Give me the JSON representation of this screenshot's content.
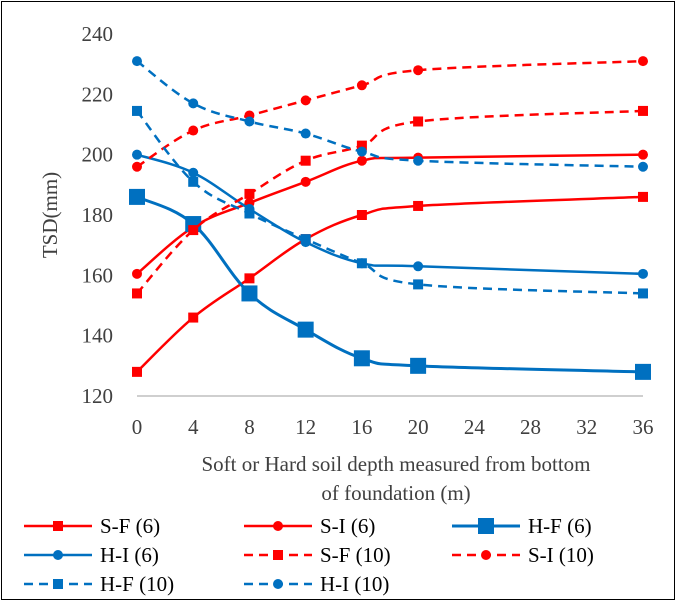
{
  "chart_data": {
    "type": "line",
    "title": "",
    "xlabel": "Soft or Hard soil depth  measured from bottom of foundation (m)",
    "xlabel_lines": [
      "Soft or Hard soil depth  measured from bottom",
      "of foundation (m)"
    ],
    "ylabel": "TSD(mm)",
    "x_categories": [
      "0",
      "4",
      "8",
      "12",
      "16",
      "20",
      "24",
      "28",
      "32",
      "36"
    ],
    "x_points": [
      "0",
      "4",
      "8",
      "12",
      "16",
      "20",
      "36"
    ],
    "ylim": [
      120,
      240
    ],
    "yticks": [
      "120",
      "140",
      "160",
      "180",
      "200",
      "220",
      "240"
    ],
    "grid": false,
    "legend_position": "bottom",
    "series": [
      {
        "name": "S-F (6)",
        "color": "#ff0000",
        "dash": "solid",
        "marker": "square",
        "marker_size": "small",
        "values": [
          128,
          146,
          159,
          172,
          180,
          183,
          186
        ]
      },
      {
        "name": "S-I (6)",
        "color": "#ff0000",
        "dash": "solid",
        "marker": "circle",
        "marker_size": "small",
        "values": [
          160.5,
          176,
          184,
          191,
          198,
          199,
          200
        ]
      },
      {
        "name": "H-F (6)",
        "color": "#0070c0",
        "dash": "solid",
        "marker": "square",
        "marker_size": "large",
        "values": [
          186,
          177,
          154,
          142,
          132.5,
          130,
          128
        ]
      },
      {
        "name": "H-I (6)",
        "color": "#0070c0",
        "dash": "solid",
        "marker": "circle",
        "marker_size": "small",
        "values": [
          200,
          194,
          182,
          171,
          164,
          163,
          160.5
        ]
      },
      {
        "name": "S-F (10)",
        "color": "#ff0000",
        "dash": "dashed",
        "marker": "square",
        "marker_size": "small",
        "values": [
          154,
          175,
          187,
          198,
          203,
          211,
          214.5
        ]
      },
      {
        "name": "S-I (10)",
        "color": "#ff0000",
        "dash": "dashed",
        "marker": "circle",
        "marker_size": "small",
        "values": [
          196,
          208,
          213,
          218,
          223,
          228,
          231
        ]
      },
      {
        "name": "H-F (10)",
        "color": "#0070c0",
        "dash": "dashed",
        "marker": "square",
        "marker_size": "small",
        "values": [
          214.5,
          191,
          180.5,
          172,
          164,
          157,
          154
        ]
      },
      {
        "name": "H-I (10)",
        "color": "#0070c0",
        "dash": "dashed",
        "marker": "circle",
        "marker_size": "small",
        "values": [
          231,
          217,
          211,
          207,
          201,
          198,
          196
        ]
      }
    ]
  }
}
